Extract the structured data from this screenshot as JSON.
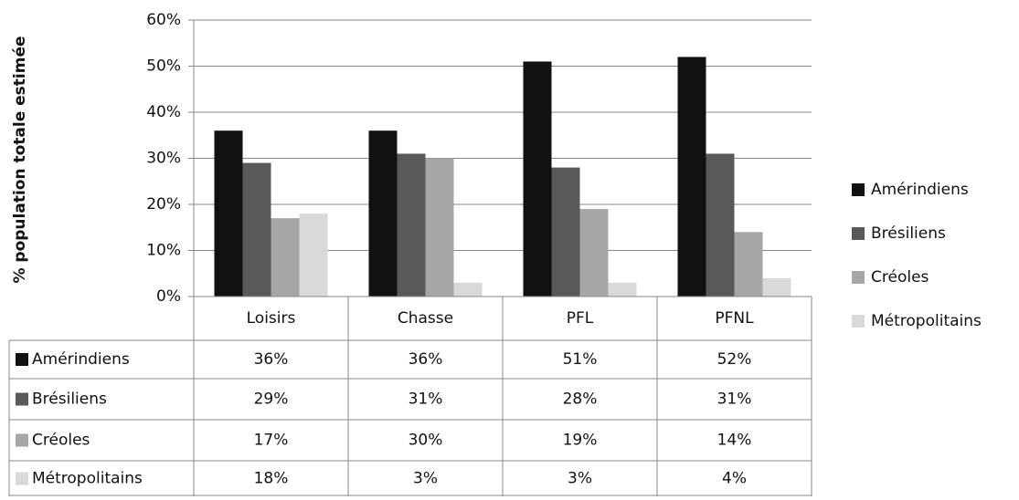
{
  "chart_data": {
    "type": "bar",
    "y_label": "% population totale estimée",
    "categories": [
      "Loisirs",
      "Chasse",
      "PFL",
      "PFNL"
    ],
    "series": [
      {
        "name": "Amérindiens",
        "color": "#111111",
        "values": [
          36,
          36,
          51,
          52
        ],
        "value_labels": [
          "36%",
          "36%",
          "51%",
          "52%"
        ]
      },
      {
        "name": "Brésiliens",
        "color": "#595959",
        "values": [
          29,
          31,
          28,
          31
        ],
        "value_labels": [
          "29%",
          "31%",
          "28%",
          "31%"
        ]
      },
      {
        "name": "Créoles",
        "color": "#a6a6a6",
        "values": [
          17,
          30,
          19,
          14
        ],
        "value_labels": [
          "17%",
          "30%",
          "19%",
          "14%"
        ]
      },
      {
        "name": "Métropolitains",
        "color": "#d9d9d9",
        "values": [
          18,
          3,
          3,
          4
        ],
        "value_labels": [
          "18%",
          "3%",
          "3%",
          "4%"
        ]
      }
    ],
    "ylim": [
      0,
      60
    ],
    "yticks": [
      {
        "value": 0,
        "label": "0%"
      },
      {
        "value": 10,
        "label": "10%"
      },
      {
        "value": 20,
        "label": "20%"
      },
      {
        "value": 30,
        "label": "30%"
      },
      {
        "value": 40,
        "label": "40%"
      },
      {
        "value": 50,
        "label": "50%"
      },
      {
        "value": 60,
        "label": "60%"
      }
    ],
    "grid": true,
    "legend": "right"
  }
}
